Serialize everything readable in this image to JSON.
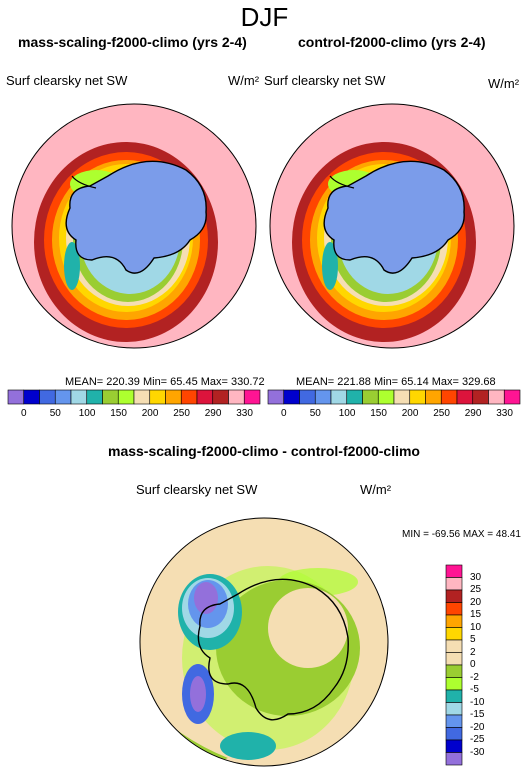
{
  "figure": {
    "season": "DJF",
    "diff_title": "mass-scaling-f2000-climo - control-f2000-climo"
  },
  "panels": [
    {
      "title": "mass-scaling-f2000-climo (yrs 2-4)",
      "variable": "Surf clearsky net SW",
      "units": "W/m²",
      "stats": "MEAN= 220.39  Min=  65.45  Max= 330.72"
    },
    {
      "title": "control-f2000-climo (yrs 2-4)",
      "variable": "Surf clearsky net SW",
      "units": "W/m²",
      "stats": "MEAN= 221.88  Min=  65.14  Max= 329.68"
    }
  ],
  "top_colorbar": {
    "labels": [
      "0",
      "50",
      "100",
      "150",
      "200",
      "250",
      "290",
      "330"
    ],
    "colors": [
      "#9370db",
      "#0000cd",
      "#4169e1",
      "#6495ed",
      "#a0d8e6",
      "#20b2aa",
      "#9acd32",
      "#adff2f",
      "#f5deb3",
      "#ffd700",
      "#ffa500",
      "#ff4500",
      "#dc143c",
      "#b22222",
      "#ffb6c1",
      "#ff1493"
    ]
  },
  "difference": {
    "variable": "Surf clearsky net SW",
    "units": "W/m²",
    "stats": "MIN = -69.56 MAX =  48.41",
    "colorbar_labels": [
      "30",
      "25",
      "20",
      "15",
      "10",
      "5",
      "2",
      "0",
      "-2",
      "-5",
      "-10",
      "-15",
      "-20",
      "-25",
      "-30"
    ],
    "colorbar_colors": [
      "#ff1493",
      "#ffb6c1",
      "#b22222",
      "#ff4500",
      "#ffa500",
      "#ffd700",
      "#f5deb3",
      "#f5deb3",
      "#9acd32",
      "#adff2f",
      "#20b2aa",
      "#a0d8e6",
      "#6495ed",
      "#4169e1",
      "#0000cd",
      "#9370db"
    ]
  },
  "map_colors": {
    "pink": "#ffb6c1",
    "darkred": "#b22222",
    "red": "#ff4500",
    "orange": "#ffa500",
    "yellow": "#ffd700",
    "tan": "#f5deb3",
    "green": "#9acd32",
    "lightgreen": "#adff2f",
    "teal": "#20b2aa",
    "lightblue": "#a0d8e6",
    "blue": "#7b9cea",
    "purple": "#9370db"
  }
}
